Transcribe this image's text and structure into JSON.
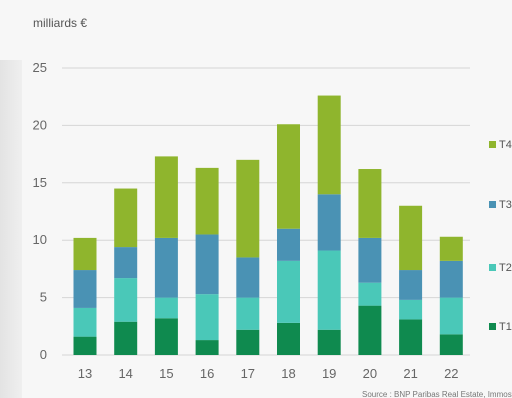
{
  "chart_data": {
    "type": "bar",
    "stacked": true,
    "ylabel": "milliards €",
    "categories": [
      "13",
      "14",
      "15",
      "16",
      "17",
      "18",
      "19",
      "20",
      "21",
      "22"
    ],
    "ylim": [
      0,
      25
    ],
    "yticks": [
      0,
      5,
      10,
      15,
      20,
      25
    ],
    "grid": true,
    "legend_position": "right",
    "series": [
      {
        "name": "T1",
        "color": "#0f8a4f",
        "values": [
          1.6,
          2.9,
          3.2,
          1.3,
          2.2,
          2.8,
          2.2,
          4.3,
          3.1,
          1.8
        ]
      },
      {
        "name": "T2",
        "color": "#4ac8b8",
        "values": [
          2.5,
          3.8,
          1.8,
          4.0,
          2.8,
          5.4,
          6.9,
          2.0,
          1.7,
          3.2
        ]
      },
      {
        "name": "T3",
        "color": "#4a92b4",
        "values": [
          3.3,
          2.7,
          5.2,
          5.2,
          3.5,
          2.8,
          4.9,
          3.9,
          2.6,
          3.2
        ]
      },
      {
        "name": "T4",
        "color": "#8fb52d",
        "values": [
          2.8,
          5.1,
          7.1,
          5.8,
          8.5,
          9.1,
          8.6,
          6.0,
          5.6,
          2.1
        ]
      }
    ],
    "source": "Source : BNP Paribas Real Estate, Immost"
  }
}
